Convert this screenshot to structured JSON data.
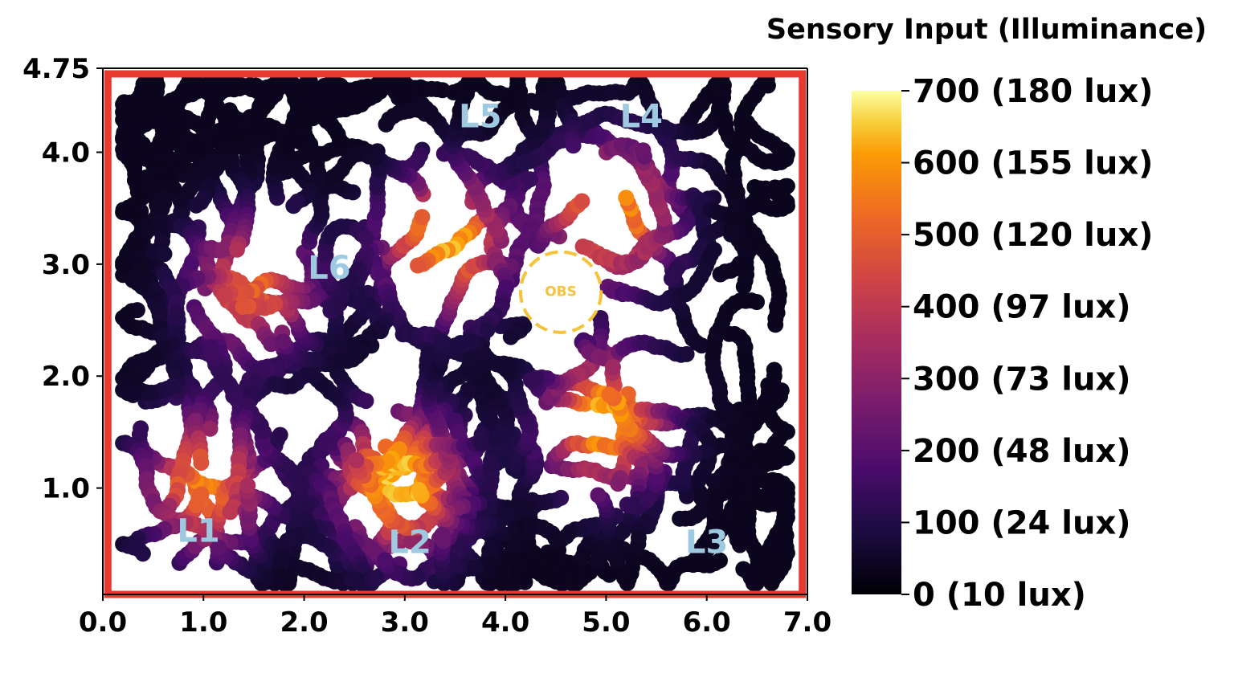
{
  "chart_data": {
    "type": "scatter",
    "title": "",
    "xlabel": "",
    "ylabel": "",
    "xlim": [
      0.0,
      7.0
    ],
    "ylim": [
      0.05,
      4.75
    ],
    "x_ticks": [
      0.0,
      1.0,
      2.0,
      3.0,
      4.0,
      5.0,
      6.0,
      7.0
    ],
    "x_tick_labels": [
      "0.0",
      "1.0",
      "2.0",
      "3.0",
      "4.0",
      "5.0",
      "6.0",
      "7.0"
    ],
    "y_ticks": [
      1.0,
      2.0,
      3.0,
      4.0,
      4.75
    ],
    "y_tick_labels": [
      "1.0",
      "2.0",
      "3.0",
      "4.0",
      "4.75"
    ],
    "colormap": "inferno",
    "colorbar": {
      "title": "Sensory Input (Illuminance)",
      "min": 0,
      "max": 700,
      "ticks": [
        0,
        100,
        200,
        300,
        400,
        500,
        600,
        700
      ],
      "tick_labels": [
        "0 (10 lux)",
        "100 (24 lux)",
        "200 (48 lux)",
        "300 (73 lux)",
        "400 (97 lux)",
        "500 (120 lux)",
        "600 (155 lux)",
        "700 (180 lux)"
      ]
    },
    "light_sources": [
      {
        "label": "L1",
        "x": 0.95,
        "y": 0.6,
        "peak": 560
      },
      {
        "label": "L2",
        "x": 3.05,
        "y": 0.5,
        "peak": 700
      },
      {
        "label": "L3",
        "x": 6.0,
        "y": 0.5,
        "peak": 0
      },
      {
        "label": "L4",
        "x": 5.35,
        "y": 4.3,
        "peak": 650
      },
      {
        "label": "L5",
        "x": 3.75,
        "y": 4.3,
        "peak": 650
      },
      {
        "label": "L6",
        "x": 2.25,
        "y": 2.95,
        "peak": 500
      }
    ],
    "bright_regions": [
      {
        "x": 1.0,
        "y": 1.05,
        "peak": 560
      },
      {
        "x": 2.95,
        "y": 1.05,
        "peak": 700
      },
      {
        "x": 5.0,
        "y": 1.6,
        "peak": 650
      },
      {
        "x": 5.05,
        "y": 3.45,
        "peak": 640
      },
      {
        "x": 3.4,
        "y": 3.2,
        "peak": 650
      },
      {
        "x": 1.5,
        "y": 2.8,
        "peak": 500
      }
    ],
    "obstacle": {
      "label": "OBS",
      "x": 4.55,
      "y": 2.75,
      "radius": 0.4
    },
    "arena_boundary": {
      "x": [
        0.05,
        6.95
      ],
      "y": [
        0.05,
        4.7
      ],
      "color": "#e8392e"
    }
  }
}
